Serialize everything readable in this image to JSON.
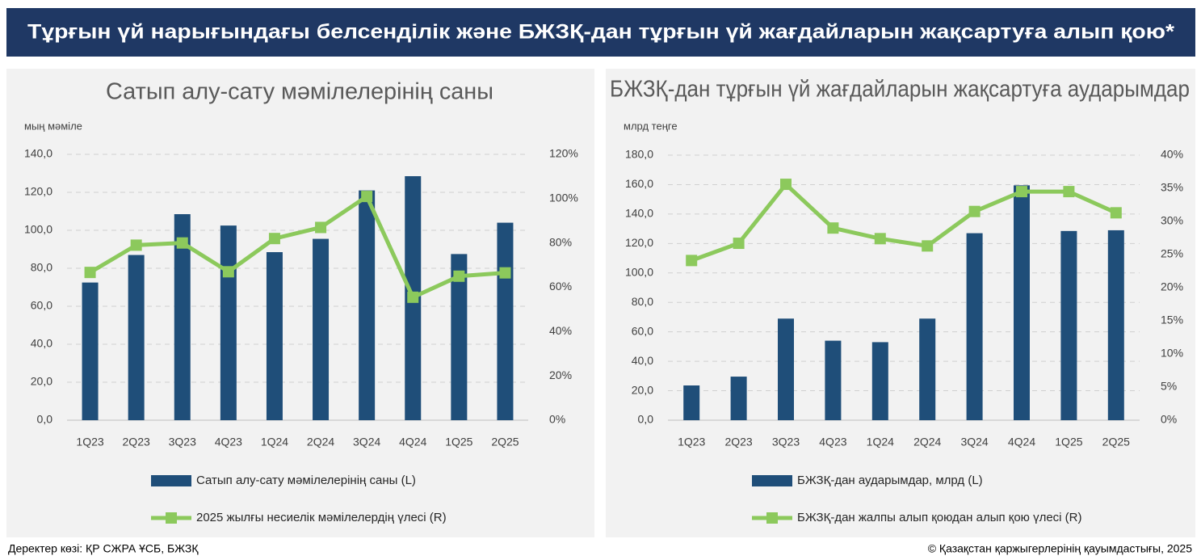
{
  "header": {
    "title": "Тұрғын үй нарығындағы белсенділік және БЖЗҚ-дан тұрғын үй жағдайларын жақсартуға алып қою*"
  },
  "chart_data": [
    {
      "type": "bar",
      "title": "Сатып алу-сату мәмілелерінің саны",
      "y_label": "мың мәміле",
      "categories": [
        "1Q23",
        "2Q23",
        "3Q23",
        "4Q23",
        "1Q24",
        "2Q24",
        "3Q24",
        "4Q24",
        "1Q25",
        "2Q25"
      ],
      "series": [
        {
          "name": "Сатып алу-сату мәмілелерінің саны (L)",
          "color": "#1f4e79",
          "values": [
            72.5,
            87,
            108.5,
            102.5,
            88.5,
            95.5,
            121,
            128.5,
            87.5,
            104
          ]
        },
        {
          "name": "2025 жылғы несиелік мәмілелердің үлесі (R)",
          "type": "line",
          "axis": "y2",
          "color": "#8cc95c",
          "values": [
            66.7,
            79,
            80,
            67,
            82,
            87,
            101,
            55.5,
            65,
            66.5
          ]
        }
      ],
      "ylim": [
        0,
        140
      ],
      "yticks": [
        {
          "value": 0,
          "label": "0,0"
        },
        {
          "value": 20,
          "label": "20,0"
        },
        {
          "value": 40,
          "label": "40,0"
        },
        {
          "value": 60,
          "label": "60,0"
        },
        {
          "value": 80,
          "label": "80,0"
        },
        {
          "value": 100,
          "label": "100,0"
        },
        {
          "value": 120,
          "label": "120,0"
        },
        {
          "value": 140,
          "label": "140,0"
        }
      ],
      "y2lim": [
        0,
        120
      ],
      "y2ticks": [
        {
          "value": 0,
          "label": "0%"
        },
        {
          "value": 20,
          "label": "20%"
        },
        {
          "value": 40,
          "label": "40%"
        },
        {
          "value": 60,
          "label": "60%"
        },
        {
          "value": 80,
          "label": "80%"
        },
        {
          "value": 100,
          "label": "100%"
        },
        {
          "value": 120,
          "label": "120%"
        }
      ],
      "grid": true
    },
    {
      "type": "bar",
      "title": "БЖЗҚ-дан тұрғын үй жағдайларын жақсартуға аударымдар",
      "y_label": "млрд теңге",
      "categories": [
        "1Q23",
        "2Q23",
        "3Q23",
        "4Q23",
        "1Q24",
        "2Q24",
        "3Q24",
        "4Q24",
        "1Q25",
        "2Q25"
      ],
      "series": [
        {
          "name": "БЖЗҚ-дан аударымдар, млрд (L)",
          "color": "#1f4e79",
          "values": [
            23.6,
            29.6,
            69,
            54,
            53,
            69,
            127,
            159.5,
            128.5,
            129
          ]
        },
        {
          "name": "БЖЗҚ-дан жалпы алып қоюдан алып қою үлесі (R)",
          "type": "line",
          "axis": "y2",
          "color": "#8cc95c",
          "values": [
            24.1,
            26.7,
            35.6,
            29,
            27.4,
            26.3,
            31.5,
            34.5,
            34.5,
            31.3
          ]
        }
      ],
      "ylim": [
        0,
        180
      ],
      "yticks": [
        {
          "value": 0,
          "label": "0,0"
        },
        {
          "value": 20,
          "label": "20,0"
        },
        {
          "value": 40,
          "label": "40,0"
        },
        {
          "value": 60,
          "label": "60,0"
        },
        {
          "value": 80,
          "label": "80,0"
        },
        {
          "value": 100,
          "label": "100,0"
        },
        {
          "value": 120,
          "label": "120,0"
        },
        {
          "value": 140,
          "label": "140,0"
        },
        {
          "value": 160,
          "label": "160,0"
        },
        {
          "value": 180,
          "label": "180,0"
        }
      ],
      "y2lim": [
        0,
        40
      ],
      "y2ticks": [
        {
          "value": 0,
          "label": "0%"
        },
        {
          "value": 5,
          "label": "5%"
        },
        {
          "value": 10,
          "label": "10%"
        },
        {
          "value": 15,
          "label": "15%"
        },
        {
          "value": 20,
          "label": "20%"
        },
        {
          "value": 25,
          "label": "25%"
        },
        {
          "value": 30,
          "label": "30%"
        },
        {
          "value": 35,
          "label": "35%"
        },
        {
          "value": 40,
          "label": "40%"
        }
      ],
      "grid": true
    }
  ],
  "footer": {
    "source": "Деректер көзі: ҚР СЖРА ҰСБ, БЖЗҚ",
    "copyright": "© Қазақстан қаржыгерлерінің қауымдастығы, 2025"
  }
}
